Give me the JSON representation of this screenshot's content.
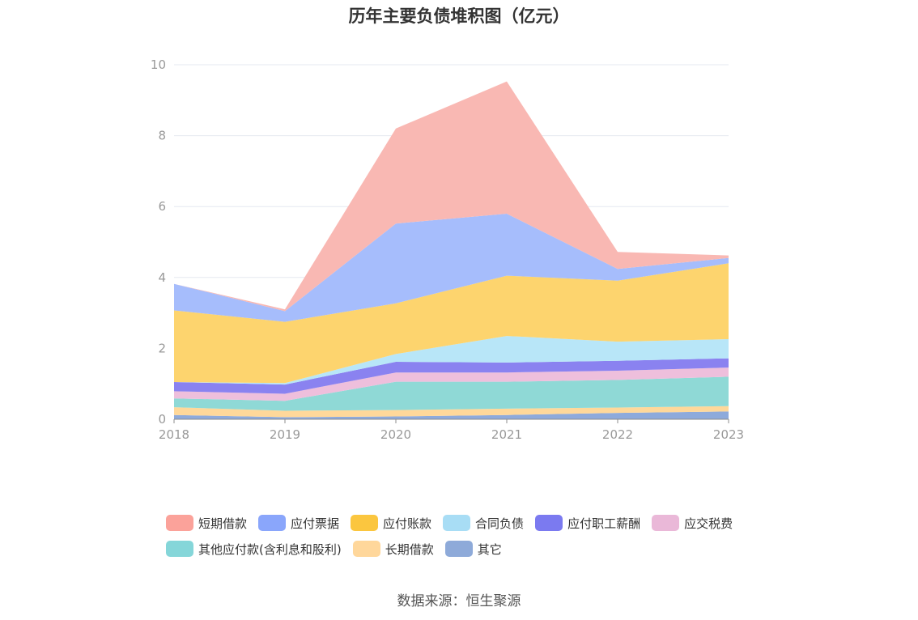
{
  "chart_data": {
    "type": "area",
    "stacked": true,
    "title": "历年主要负债堆积图（亿元）",
    "xlabel": "",
    "ylabel": "",
    "x": [
      "2018",
      "2019",
      "2020",
      "2021",
      "2022",
      "2023"
    ],
    "ylim": [
      0,
      10
    ],
    "yticks": [
      0,
      2,
      4,
      6,
      8,
      10
    ],
    "grid": true,
    "legend_position": "bottom",
    "series": [
      {
        "name": "其它",
        "color": "#8eaadb",
        "values": [
          0.12,
          0.06,
          0.08,
          0.12,
          0.18,
          0.22
        ]
      },
      {
        "name": "长期借款",
        "color": "#ffd89a",
        "values": [
          0.22,
          0.18,
          0.18,
          0.18,
          0.15,
          0.15
        ]
      },
      {
        "name": "其他应付款(含利息和股利)",
        "color": "#8fd9d6",
        "values": [
          0.25,
          0.28,
          0.8,
          0.76,
          0.78,
          0.83
        ]
      },
      {
        "name": "应交税费",
        "color": "#eebfdc",
        "values": [
          0.2,
          0.2,
          0.26,
          0.26,
          0.26,
          0.26
        ]
      },
      {
        "name": "应付职工薪酬",
        "color": "#8a82f0",
        "values": [
          0.26,
          0.26,
          0.3,
          0.28,
          0.28,
          0.26
        ]
      },
      {
        "name": "合同负债",
        "color": "#b8e6f8",
        "values": [
          0.0,
          0.04,
          0.22,
          0.75,
          0.54,
          0.54
        ]
      },
      {
        "name": "应付账款",
        "color": "#fdd46e",
        "values": [
          2.02,
          1.73,
          1.43,
          1.7,
          1.72,
          2.14
        ]
      },
      {
        "name": "应付票据",
        "color": "#a6bdfc",
        "values": [
          0.75,
          0.3,
          2.25,
          1.75,
          0.33,
          0.15
        ]
      },
      {
        "name": "短期借款",
        "color": "#f9b8b3",
        "values": [
          0.0,
          0.05,
          2.68,
          3.73,
          0.48,
          0.07
        ]
      }
    ],
    "legend_order": [
      "短期借款",
      "应付票据",
      "应付账款",
      "合同负债",
      "应付职工薪酬",
      "应交税费",
      "其他应付款(含利息和股利)",
      "长期借款",
      "其它"
    ]
  },
  "legend_swatch_colors": {
    "短期借款": "#fba29a",
    "应付票据": "#8aa6fb",
    "应付账款": "#fbc63f",
    "合同负债": "#a8ddf5",
    "应付职工薪酬": "#7b7af0",
    "应交税费": "#eab8d8",
    "其他应付款(含利息和股利)": "#85d6d9",
    "长期借款": "#ffd79b",
    "其它": "#8eaad9"
  },
  "source_text": "数据来源：恒生聚源"
}
